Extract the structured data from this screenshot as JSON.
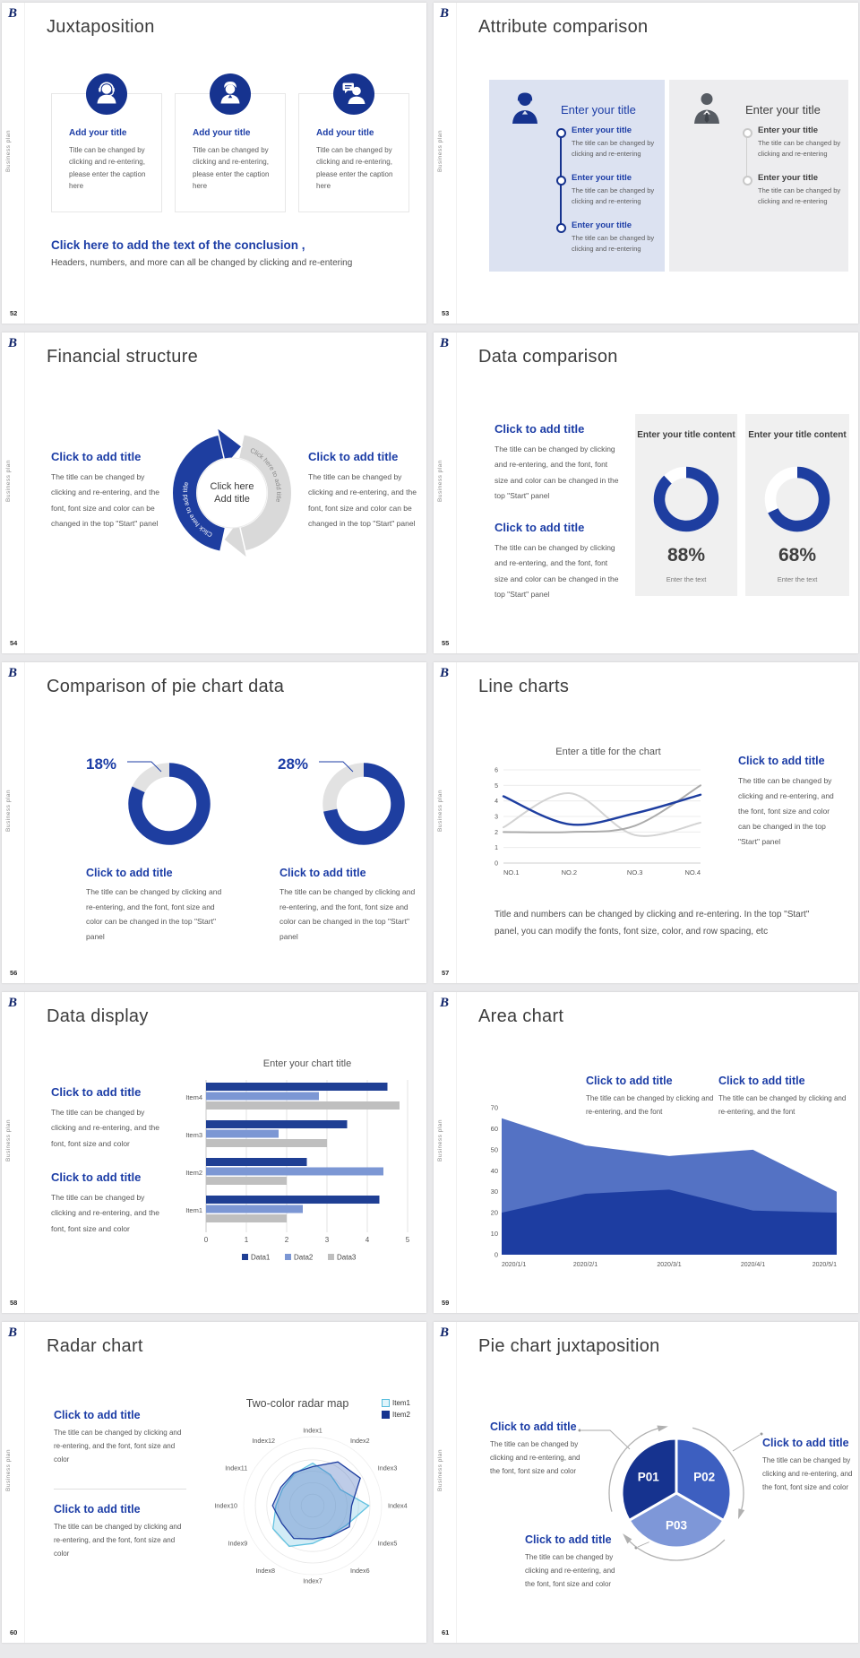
{
  "chrome": {
    "logo": "B",
    "sidebar_label": "Business plan"
  },
  "slides": [
    {
      "number": "52",
      "title": "Juxtaposition",
      "cards": [
        {
          "icon": "support-agent-icon",
          "heading": "Add your title",
          "body": "Title can be changed by clicking and re-entering, please enter the caption here"
        },
        {
          "icon": "female-user-icon",
          "heading": "Add your title",
          "body": "Title can be changed by clicking and re-entering, please enter the caption here"
        },
        {
          "icon": "person-chat-icon",
          "heading": "Add your title",
          "body": "Title can be changed by clicking and re-entering, please enter the caption here"
        }
      ],
      "conclusion_heading": "Click here to add the text of the conclusion ,",
      "conclusion_body": "Headers, numbers, and more can all be changed by clicking and re-entering"
    },
    {
      "number": "53",
      "title": "Attribute comparison",
      "left_panel": {
        "title": "Enter your title",
        "items": [
          {
            "heading": "Enter your title",
            "body": "The title can be changed by clicking and re-entering"
          },
          {
            "heading": "Enter your title",
            "body": "The title can be changed by clicking and re-entering"
          },
          {
            "heading": "Enter your title",
            "body": "The title can be changed by clicking and re-entering"
          }
        ]
      },
      "right_panel": {
        "title": "Enter your title",
        "items": [
          {
            "heading": "Enter your title",
            "body": "The title can be changed by clicking and re-entering"
          },
          {
            "heading": "Enter your title",
            "body": "The title can be changed by clicking and re-entering"
          }
        ]
      }
    },
    {
      "number": "54",
      "title": "Financial structure",
      "left_block": {
        "heading": "Click to add title",
        "body": "The title can be changed by clicking and re-entering, and the font, font size and color can be changed in the top \"Start\" panel"
      },
      "right_block": {
        "heading": "Click to add title",
        "body": "The title can be changed by clicking and re-entering, and the font, font size and color can be changed in the top \"Start\" panel"
      },
      "center": {
        "line1": "Click here",
        "line2": "Add title",
        "blue_arc_label": "Click here to add title",
        "gray_arc_label": "Click here to add title"
      }
    },
    {
      "number": "55",
      "title": "Data comparison",
      "blocks": [
        {
          "heading": "Click to add title",
          "body": "The title can be changed by clicking and re-entering, and the font, font size and color can be changed in the top \"Start\" panel"
        },
        {
          "heading": "Click to add title",
          "body": "The title can be changed by clicking and re-entering, and the font, font size and color can be changed in the top \"Start\" panel"
        }
      ],
      "cards": [
        {
          "title": "Enter your title content",
          "value": "88%",
          "caption": "Enter the text"
        },
        {
          "title": "Enter your title content",
          "value": "68%",
          "caption": "Enter the text"
        }
      ]
    },
    {
      "number": "56",
      "title": "Comparison of pie chart data",
      "items": [
        {
          "label": "18%",
          "heading": "Click to add title",
          "body": "The title can be changed by clicking and re-entering, and the font, font size and color can be changed in the top \"Start\" panel"
        },
        {
          "label": "28%",
          "heading": "Click to add title",
          "body": "The title can be changed by clicking and re-entering, and the font, font size and color can be changed in the top \"Start\" panel"
        }
      ]
    },
    {
      "number": "57",
      "title": "Line charts",
      "block": {
        "heading": "Click to add title",
        "body": "The title can be changed by clicking and re-entering, and the font, font size and color can be changed in the top \"Start\" panel"
      },
      "footer": "Title and numbers can be changed by clicking and re-entering. In the top \"Start\" panel, you can modify the fonts, font size, color, and row spacing, etc"
    },
    {
      "number": "58",
      "title": "Data display",
      "blocks": [
        {
          "heading": "Click to add title",
          "body": "The title can be changed by clicking and re-entering, and the font, font size and color"
        },
        {
          "heading": "Click to add title",
          "body": "The title can be changed by clicking and re-entering, and the font, font size and color"
        }
      ]
    },
    {
      "number": "59",
      "title": "Area chart",
      "blocks": [
        {
          "heading": "Click to add title",
          "body": "The title can be changed by clicking and re-entering, and the font"
        },
        {
          "heading": "Click to add title",
          "body": "The title can be changed by clicking and re-entering, and the font"
        }
      ]
    },
    {
      "number": "60",
      "title": "Radar chart",
      "blocks": [
        {
          "heading": "Click to add title",
          "body": "The title can be changed by clicking and re-entering, and the font, font size and color"
        },
        {
          "heading": "Click to add title",
          "body": "The title can be changed by clicking and re-entering, and the font, font size and color"
        }
      ]
    },
    {
      "number": "61",
      "title": "Pie chart juxtaposition",
      "blocks": [
        {
          "heading": "Click to add title",
          "body": "The title can be changed by clicking and re-entering, and the font, font size and color"
        },
        {
          "heading": "Click to add title",
          "body": "The title can be changed by clicking and re-entering, and the font, font size and color"
        },
        {
          "heading": "Click to add title",
          "body": "The title can be changed by clicking and re-entering, and the font, font size and color"
        }
      ]
    }
  ],
  "chart_data": [
    {
      "id": "comparison_donuts",
      "slide": 55,
      "type": "donut",
      "color": "#1e3ea0",
      "track": "#ffffff",
      "items": [
        {
          "label": "Enter your title content",
          "value": 88,
          "unit": "%",
          "caption": "Enter the text"
        },
        {
          "label": "Enter your title content",
          "value": 68,
          "unit": "%",
          "caption": "Enter the text"
        }
      ]
    },
    {
      "id": "pie_comparison_donuts",
      "slide": 56,
      "type": "donut",
      "color": "#1e3ea0",
      "track": "#e2e2e2",
      "note": "gray slice equals labeled percent, blue is remainder",
      "items": [
        {
          "label": "18%",
          "value": 18
        },
        {
          "label": "28%",
          "value": 28
        }
      ]
    },
    {
      "id": "line_chart",
      "slide": 57,
      "type": "line",
      "title": "Enter a title for the chart",
      "categories": [
        "NO.1",
        "NO.2",
        "NO.3",
        "NO.4"
      ],
      "ylim": [
        0,
        6
      ],
      "yticks": [
        0,
        1,
        2,
        3,
        4,
        5,
        6
      ],
      "grid": true,
      "series": [
        {
          "name": "gray-light",
          "color": "#d3d3d3",
          "values": [
            2.3,
            4.5,
            1.8,
            2.6
          ]
        },
        {
          "name": "gray-mid",
          "color": "#ababab",
          "values": [
            2.0,
            2.0,
            2.4,
            5.0
          ]
        },
        {
          "name": "blue",
          "color": "#1e3ea0",
          "values": [
            4.3,
            2.5,
            3.2,
            4.4
          ]
        }
      ]
    },
    {
      "id": "bar_chart",
      "slide": 58,
      "type": "bar",
      "orientation": "horizontal",
      "title": "Enter your chart title",
      "categories": [
        "Item1",
        "Item2",
        "Item3",
        "Item4"
      ],
      "xlim": [
        0,
        5
      ],
      "xticks": [
        0,
        1,
        2,
        3,
        4,
        5
      ],
      "legend_position": "bottom",
      "series": [
        {
          "name": "Data3",
          "color": "#bfbfbf",
          "values": [
            2.0,
            2.0,
            3.0,
            4.8
          ]
        },
        {
          "name": "Data2",
          "color": "#7c97d4",
          "values": [
            2.4,
            4.4,
            1.8,
            2.8
          ]
        },
        {
          "name": "Data1",
          "color": "#1f3f94",
          "values": [
            4.3,
            2.5,
            3.5,
            4.5
          ]
        }
      ]
    },
    {
      "id": "area_chart",
      "slide": 59,
      "type": "area",
      "x": [
        "2020/1/1",
        "2020/2/1",
        "2020/3/1",
        "2020/4/1",
        "2020/5/1"
      ],
      "ylim": [
        0,
        70
      ],
      "yticks": [
        0,
        10,
        20,
        30,
        40,
        50,
        60,
        70
      ],
      "series": [
        {
          "name": "light",
          "color": "#5472c4",
          "values": [
            65,
            52,
            47,
            50,
            30
          ]
        },
        {
          "name": "dark",
          "color": "#1d3da1",
          "values": [
            20,
            29,
            31,
            21,
            20
          ]
        }
      ]
    },
    {
      "id": "radar_chart",
      "slide": 60,
      "type": "radar",
      "title": "Two-color radar map",
      "rmax": 5,
      "axes": [
        "Index1",
        "Index2",
        "Index3",
        "Index4",
        "Index5",
        "Index6",
        "Index7",
        "Index8",
        "Index9",
        "Index10",
        "Index11",
        "Index12"
      ],
      "series": [
        {
          "name": "Item1",
          "color": "#62c2e0",
          "fill": "rgba(125,200,230,0.35)",
          "values": [
            3.7,
            3.1,
            2.8,
            4.9,
            3.4,
            3.0,
            3.3,
            4.1,
            4.0,
            3.2,
            3.0,
            3.2
          ]
        },
        {
          "name": "Item2",
          "color": "#1e3ea0",
          "fill": "rgba(70,110,190,0.35)",
          "values": [
            3.4,
            4.4,
            4.8,
            3.4,
            3.7,
            3.1,
            2.9,
            3.3,
            3.1,
            3.5,
            3.2,
            3.3
          ]
        }
      ]
    },
    {
      "id": "pie_juxtaposition",
      "slide": 61,
      "type": "pie",
      "slices": [
        {
          "label": "P01",
          "value": 33.3,
          "color": "#16338f"
        },
        {
          "label": "P02",
          "value": 33.3,
          "color": "#3d5fc0"
        },
        {
          "label": "P03",
          "value": 33.4,
          "color": "#7e97d8"
        }
      ]
    }
  ]
}
